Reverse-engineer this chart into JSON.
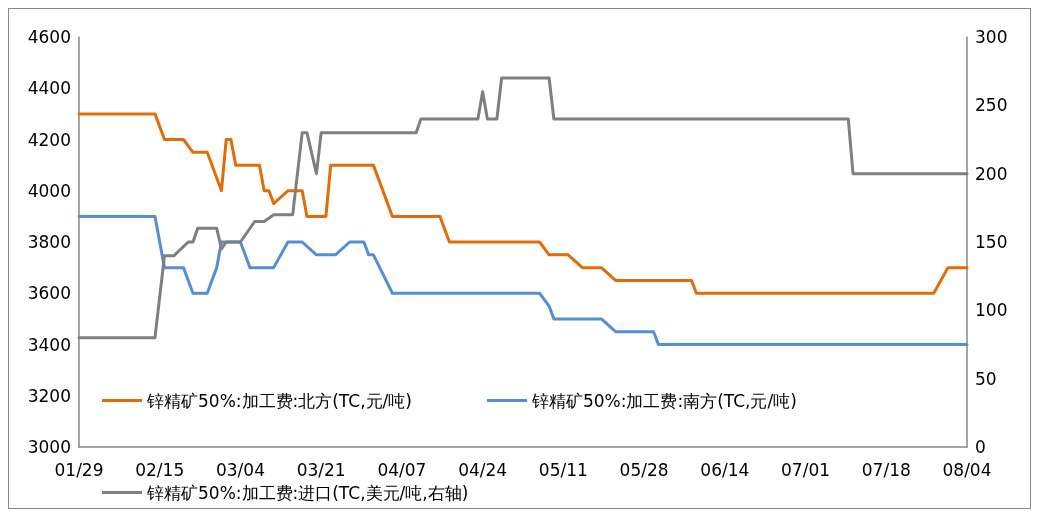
{
  "chart_data": {
    "type": "line",
    "xlim": [
      "--01-29",
      "--08-04"
    ],
    "xticks": [
      {
        "value": "--01-29",
        "label": "01/29"
      },
      {
        "value": "--02-15",
        "label": "02/15"
      },
      {
        "value": "--03-04",
        "label": "03/04"
      },
      {
        "value": "--03-21",
        "label": "03/21"
      },
      {
        "value": "--04-07",
        "label": "04/07"
      },
      {
        "value": "--04-24",
        "label": "04/24"
      },
      {
        "value": "--05-11",
        "label": "05/11"
      },
      {
        "value": "--05-28",
        "label": "05/28"
      },
      {
        "value": "--06-14",
        "label": "06/14"
      },
      {
        "value": "--07-01",
        "label": "07/01"
      },
      {
        "value": "--07-18",
        "label": "07/18"
      },
      {
        "value": "--08-04",
        "label": "08/04"
      }
    ],
    "ylim": [
      3000,
      4600
    ],
    "yticks": [
      3000,
      3200,
      3400,
      3600,
      3800,
      4000,
      4200,
      4400,
      4600
    ],
    "y2lim": [
      0,
      300
    ],
    "y2ticks": [
      0,
      50,
      100,
      150,
      200,
      250,
      300
    ],
    "grid": false,
    "legend": "bottom left",
    "marker": "none",
    "line_style": "solid",
    "series": [
      {
        "name": "锌精矿50%:加工费:北方(TC,元/吨)",
        "color": "#e36c09",
        "x": [
          "--01-29",
          "--02-14",
          "--02-16",
          "--02-20",
          "--02-22",
          "--02-25",
          "--02-28",
          "--03-01",
          "--03-02",
          "--03-03",
          "--03-08",
          "--03-09",
          "--03-10",
          "--03-11",
          "--03-14",
          "--03-17",
          "--03-18",
          "--03-22",
          "--03-23",
          "--04-01",
          "--04-05",
          "--04-15",
          "--04-17",
          "--05-06",
          "--05-08",
          "--05-12",
          "--05-15",
          "--05-19",
          "--05-22",
          "--06-07",
          "--06-08",
          "--07-28",
          "--07-31",
          "--08-04"
        ],
        "values": [
          4300,
          4300,
          4200,
          4200,
          4150,
          4150,
          4000,
          4200,
          4200,
          4100,
          4100,
          4000,
          4000,
          3950,
          4000,
          4000,
          3900,
          3900,
          4100,
          4100,
          3900,
          3900,
          3800,
          3800,
          3750,
          3750,
          3700,
          3700,
          3650,
          3650,
          3600,
          3600,
          3700,
          3700
        ]
      },
      {
        "name": "锌精矿50%:加工费:南方(TC,元/吨)",
        "color": "#558ed5",
        "x": [
          "--01-29",
          "--02-14",
          "--02-16",
          "--02-20",
          "--02-22",
          "--02-25",
          "--02-27",
          "--02-28",
          "--03-04",
          "--03-06",
          "--03-11",
          "--03-14",
          "--03-17",
          "--03-20",
          "--03-24",
          "--03-27",
          "--03-30",
          "--03-31",
          "--04-01",
          "--04-05",
          "--05-06",
          "--05-08",
          "--05-09",
          "--05-19",
          "--05-22",
          "--05-30",
          "--05-31",
          "--08-04"
        ],
        "values": [
          3900,
          3900,
          3700,
          3700,
          3600,
          3600,
          3700,
          3800,
          3800,
          3700,
          3700,
          3800,
          3800,
          3750,
          3750,
          3800,
          3800,
          3750,
          3750,
          3600,
          3600,
          3550,
          3500,
          3500,
          3450,
          3450,
          3400,
          3400
        ]
      },
      {
        "name": "锌精矿50%:加工费:进口(TC,美元/吨,右轴)",
        "color": "#7f7f7f",
        "axis": "y2",
        "x": [
          "--01-29",
          "--02-14",
          "--02-16",
          "--02-18",
          "--02-21",
          "--02-22",
          "--02-23",
          "--02-27",
          "--02-28",
          "--03-01",
          "--03-04",
          "--03-07",
          "--03-09",
          "--03-11",
          "--03-15",
          "--03-17",
          "--03-18",
          "--03-20",
          "--03-21",
          "--04-10",
          "--04-11",
          "--04-23",
          "--04-24",
          "--04-25",
          "--04-27",
          "--04-28",
          "--05-08",
          "--05-09",
          "--07-10",
          "--07-11",
          "--08-04"
        ],
        "values": [
          80,
          80,
          140,
          140,
          150,
          150,
          160,
          160,
          145,
          150,
          150,
          165,
          165,
          170,
          170,
          230,
          230,
          200,
          230,
          230,
          240,
          240,
          260,
          240,
          240,
          270,
          270,
          240,
          240,
          200,
          200
        ]
      }
    ]
  }
}
